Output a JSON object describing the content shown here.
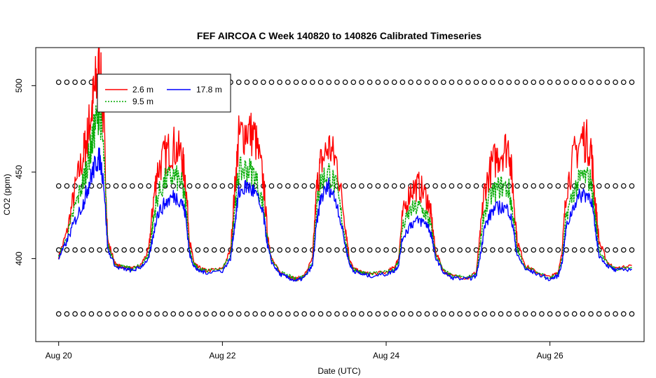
{
  "chart_data": {
    "type": "line",
    "title": "FEF AIRCOA C  Week 140820 to 140826  Calibrated Timeseries",
    "xlabel": "Date (UTC)",
    "ylabel": "CO2 (ppm)",
    "x_unit": "days since Aug 20 00:00 UTC",
    "xlim": [
      -0.28,
      7.15
    ],
    "ylim": [
      352,
      522
    ],
    "x_ticks": [
      {
        "value": 0,
        "label": "Aug 20"
      },
      {
        "value": 2,
        "label": "Aug 22"
      },
      {
        "value": 4,
        "label": "Aug 24"
      },
      {
        "value": 6,
        "label": "Aug 26"
      }
    ],
    "y_ticks": [
      {
        "value": 400,
        "label": "400"
      },
      {
        "value": 450,
        "label": "450"
      },
      {
        "value": 500,
        "label": "500"
      }
    ],
    "grid": false,
    "legend_position": "top-left",
    "series": [
      {
        "name": "2.6 m",
        "color": "#ff0000",
        "x": [
          0,
          0.1,
          0.2,
          0.3,
          0.35,
          0.4,
          0.45,
          0.5,
          0.55,
          0.6,
          0.7,
          0.8,
          0.9,
          1.0,
          1.1,
          1.15,
          1.2,
          1.3,
          1.4,
          1.5,
          1.55,
          1.6,
          1.65,
          1.7,
          1.8,
          2.0,
          2.1,
          2.15,
          2.2,
          2.3,
          2.4,
          2.5,
          2.55,
          2.6,
          2.7,
          2.8,
          2.9,
          3.0,
          3.1,
          3.15,
          3.2,
          3.3,
          3.4,
          3.5,
          3.55,
          3.6,
          3.7,
          3.8,
          4.0,
          4.1,
          4.15,
          4.2,
          4.3,
          4.4,
          4.5,
          4.55,
          4.6,
          4.7,
          4.8,
          5.0,
          5.1,
          5.15,
          5.2,
          5.3,
          5.4,
          5.5,
          5.55,
          5.6,
          5.7,
          5.8,
          6.0,
          6.1,
          6.15,
          6.2,
          6.3,
          6.4,
          6.5,
          6.55,
          6.6,
          6.7,
          6.8,
          7.0
        ],
        "y": [
          401,
          415,
          440,
          460,
          470,
          485,
          500,
          510,
          480,
          410,
          396,
          395,
          394,
          396,
          405,
          430,
          450,
          460,
          465,
          460,
          445,
          410,
          398,
          395,
          393,
          394,
          405,
          440,
          470,
          475,
          470,
          445,
          415,
          400,
          392,
          390,
          388,
          390,
          400,
          440,
          455,
          465,
          455,
          420,
          400,
          394,
          392,
          391,
          392,
          395,
          400,
          425,
          440,
          442,
          435,
          425,
          405,
          393,
          390,
          389,
          392,
          415,
          440,
          455,
          462,
          465,
          440,
          410,
          396,
          393,
          389,
          392,
          405,
          440,
          460,
          470,
          465,
          435,
          410,
          398,
          394,
          396
        ]
      },
      {
        "name": "9.5 m",
        "color": "#00aa00",
        "x": [
          0,
          0.1,
          0.2,
          0.3,
          0.35,
          0.4,
          0.45,
          0.5,
          0.55,
          0.6,
          0.7,
          0.8,
          0.9,
          1.0,
          1.1,
          1.15,
          1.2,
          1.3,
          1.4,
          1.5,
          1.55,
          1.6,
          1.65,
          1.7,
          1.8,
          2.0,
          2.1,
          2.15,
          2.2,
          2.3,
          2.4,
          2.5,
          2.55,
          2.6,
          2.7,
          2.8,
          2.9,
          3.0,
          3.1,
          3.15,
          3.2,
          3.3,
          3.4,
          3.5,
          3.55,
          3.6,
          3.7,
          3.8,
          4.0,
          4.1,
          4.15,
          4.2,
          4.3,
          4.4,
          4.5,
          4.55,
          4.6,
          4.7,
          4.8,
          5.0,
          5.1,
          5.15,
          5.2,
          5.3,
          5.4,
          5.5,
          5.55,
          5.6,
          5.7,
          5.8,
          6.0,
          6.1,
          6.15,
          6.2,
          6.3,
          6.4,
          6.5,
          6.55,
          6.6,
          6.7,
          6.8,
          7.0
        ],
        "y": [
          401,
          412,
          430,
          445,
          455,
          465,
          478,
          488,
          460,
          408,
          396,
          395,
          394,
          396,
          402,
          420,
          435,
          445,
          448,
          444,
          432,
          405,
          397,
          394,
          393,
          394,
          402,
          430,
          450,
          452,
          448,
          430,
          410,
          399,
          392,
          390,
          388,
          390,
          398,
          430,
          445,
          450,
          440,
          412,
          398,
          394,
          392,
          391,
          392,
          394,
          398,
          418,
          428,
          430,
          425,
          418,
          403,
          393,
          390,
          389,
          391,
          408,
          428,
          438,
          442,
          440,
          425,
          405,
          395,
          393,
          389,
          391,
          400,
          425,
          440,
          448,
          445,
          425,
          405,
          397,
          394,
          395
        ]
      },
      {
        "name": "17.8 m",
        "color": "#0000ff",
        "x": [
          0,
          0.1,
          0.2,
          0.3,
          0.35,
          0.4,
          0.45,
          0.5,
          0.55,
          0.6,
          0.7,
          0.8,
          0.9,
          1.0,
          1.1,
          1.15,
          1.2,
          1.3,
          1.4,
          1.5,
          1.55,
          1.6,
          1.65,
          1.7,
          1.8,
          2.0,
          2.1,
          2.15,
          2.2,
          2.3,
          2.4,
          2.5,
          2.55,
          2.6,
          2.7,
          2.8,
          2.9,
          3.0,
          3.1,
          3.15,
          3.2,
          3.3,
          3.4,
          3.5,
          3.55,
          3.6,
          3.7,
          3.8,
          4.0,
          4.1,
          4.15,
          4.2,
          4.3,
          4.4,
          4.5,
          4.55,
          4.6,
          4.7,
          4.8,
          5.0,
          5.1,
          5.15,
          5.2,
          5.3,
          5.4,
          5.5,
          5.55,
          5.6,
          5.7,
          5.8,
          6.0,
          6.1,
          6.15,
          6.2,
          6.3,
          6.4,
          6.5,
          6.55,
          6.6,
          6.7,
          6.8,
          7.0
        ],
        "y": [
          400,
          410,
          422,
          432,
          440,
          448,
          455,
          458,
          445,
          405,
          395,
          394,
          393,
          395,
          400,
          412,
          425,
          432,
          436,
          434,
          425,
          402,
          396,
          393,
          392,
          393,
          400,
          420,
          438,
          442,
          438,
          425,
          408,
          398,
          391,
          389,
          387,
          389,
          396,
          420,
          435,
          442,
          432,
          408,
          397,
          393,
          391,
          390,
          391,
          393,
          396,
          412,
          420,
          422,
          420,
          414,
          401,
          392,
          389,
          388,
          390,
          402,
          418,
          428,
          430,
          428,
          418,
          402,
          394,
          392,
          388,
          390,
          398,
          418,
          432,
          438,
          436,
          418,
          402,
          396,
          393,
          394
        ]
      },
      {
        "name": "circles",
        "color": "#000000",
        "levels": [
          368,
          405,
          442,
          502
        ],
        "step": 0.1
      }
    ]
  }
}
